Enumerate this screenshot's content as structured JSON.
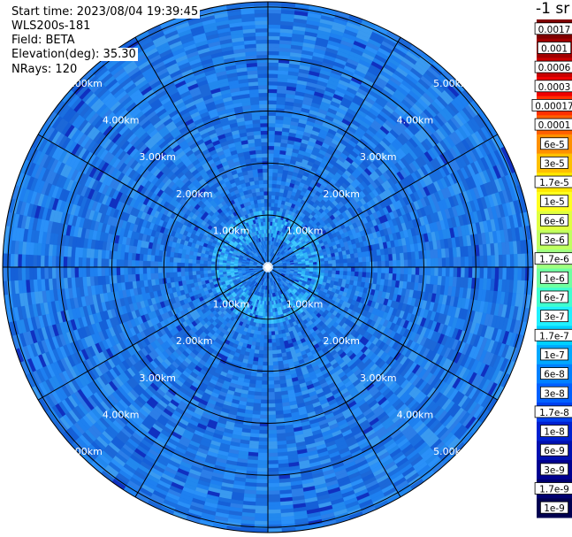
{
  "header": {
    "start_time": "Start time: 2023/08/04 19:39:45",
    "instrument": "WLS200s-181",
    "field": "Field: BETA",
    "elevation": "Elevation(deg): 35.30",
    "nrays": "NRays: 120"
  },
  "colorbar": {
    "unit_label": "-1 sr",
    "labels": [
      "0.0017",
      "0.001",
      "0.0006",
      "0.0003",
      "0.00017",
      "0.0001",
      "6e-5",
      "3e-5",
      "1.7e-5",
      "1e-5",
      "6e-6",
      "3e-6",
      "1.7e-6",
      "1e-6",
      "6e-7",
      "3e-7",
      "1.7e-7",
      "1e-7",
      "6e-8",
      "3e-8",
      "1.7e-8",
      "1e-8",
      "6e-9",
      "3e-9",
      "1.7e-9",
      "1e-9"
    ],
    "colors": [
      "#800000",
      "#a00000",
      "#c80000",
      "#f00000",
      "#ff3000",
      "#ff6000",
      "#ff9000",
      "#ffc000",
      "#ffe800",
      "#ffff20",
      "#e0ff40",
      "#c0ff60",
      "#a0ff80",
      "#70ffa0",
      "#40ffd0",
      "#20f0ff",
      "#00d0ff",
      "#00a8ff",
      "#0080ff",
      "#0060ff",
      "#0040f0",
      "#0020d0",
      "#0010b0",
      "#000090",
      "#000070",
      "#000050"
    ]
  },
  "chart_data": {
    "type": "polar-ppi",
    "field": "BETA",
    "elevation_deg": 35.3,
    "nrays": 120,
    "range_rings_km": [
      1.0,
      2.0,
      3.0,
      4.0,
      5.0
    ],
    "ring_labels": [
      "1.00km",
      "2.00km",
      "3.00km",
      "4.00km",
      "5.00km"
    ],
    "max_range_km": 5.1,
    "spokes_deg": [
      0,
      30,
      60,
      90,
      120,
      150,
      180,
      210,
      240,
      270,
      300,
      330
    ],
    "dominant_value_range": [
      "1e-8",
      "1.7e-7"
    ],
    "near_field_enhancement_km": [
      0.6,
      1.1
    ],
    "scale": "log"
  }
}
